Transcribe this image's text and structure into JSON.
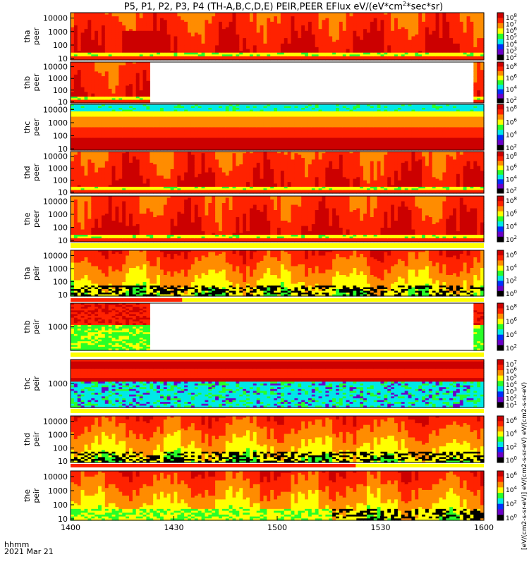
{
  "title_parts": {
    "before": "P5, P1, P2, P3, P4 (TH-A,B,C,D,E) PEIR,PEER EFlux eV/(eV*cm",
    "sup": "2",
    "after": "*sec*sr)"
  },
  "time_axis_label": "hhmm",
  "date_label": "2021 Mar 21",
  "colorbar_unit_label": "[eV/(cm2-s-sr-eV)] eV/(cm2-s-sr-eV) eV/(cm2-s-sr-eV)",
  "colors": {
    "black": "#000000",
    "purple": "#6a00c8",
    "blue": "#0030ff",
    "cyan": "#00e8e8",
    "green": "#28ff28",
    "yellow": "#ffff00",
    "orange": "#ff8c00",
    "red": "#ff2200",
    "darkred": "#cc0000"
  },
  "chart_data": {
    "type": "heatmap",
    "x_unit": "hhmm UT",
    "x_range": [
      "1400",
      "1600"
    ],
    "x_ticks": [
      "1400",
      "1430",
      "1500",
      "1530",
      "1600"
    ],
    "y_scale": "log",
    "y_unit": "eV",
    "panels": [
      {
        "name": "tha peer",
        "label1": "tha",
        "label2": "peer",
        "y_ticks": [
          "10000",
          "1000",
          "100",
          "10"
        ],
        "cbar_ticks": [
          "10^8",
          "10^7",
          "10^6",
          "10^5",
          "10^4",
          "10^3",
          "10^2"
        ],
        "features": {
          "gap": null,
          "dark_core": [
            0.12,
            0.22
          ],
          "low_band": "green-yellow"
        }
      },
      {
        "name": "thb peer",
        "label1": "thb",
        "label2": "peer",
        "y_ticks": [
          "10000",
          "1000",
          "100",
          "10"
        ],
        "cbar_ticks": [
          "10^8",
          "10^6",
          "10^4",
          "10^2"
        ],
        "features": {
          "gap": [
            0.19,
            0.97
          ]
        }
      },
      {
        "name": "thc peer",
        "label1": "thc",
        "label2": "peer",
        "y_ticks": [
          "10000",
          "1000",
          "100",
          "10"
        ],
        "cbar_ticks": [
          "10^8",
          "10^6",
          "10^4",
          "10^2"
        ],
        "features": {
          "gap": null,
          "top_band": "blue-cyan"
        }
      },
      {
        "name": "thd peer",
        "label1": "thd",
        "label2": "peer",
        "y_ticks": [
          "10000",
          "1000",
          "100",
          "10"
        ],
        "cbar_ticks": [
          "10^8",
          "10^6",
          "10^4",
          "10^2"
        ],
        "features": {
          "gap": null
        }
      },
      {
        "name": "the peer",
        "label1": "the",
        "label2": "peer",
        "y_ticks": [
          "10000",
          "1000",
          "100",
          "10"
        ],
        "cbar_ticks": [
          "10^8",
          "10^6",
          "10^4",
          "10^2"
        ],
        "features": {
          "gap": null
        }
      },
      {
        "name": "tha peir",
        "label1": "tha",
        "label2": "peir",
        "y_ticks": [
          "10000",
          "1000",
          "100",
          "10"
        ],
        "cbar_ticks": [
          "10^6",
          "10^4",
          "10^2",
          "10^0"
        ],
        "features": {
          "gap": null,
          "low_band": "black-noise"
        }
      },
      {
        "name": "thb peir",
        "label1": "thb",
        "label2": "peir",
        "y_ticks": [
          "1000"
        ],
        "cbar_ticks": [
          "10^8",
          "10^6",
          "10^4",
          "10^2"
        ],
        "features": {
          "gap": [
            0.19,
            0.97
          ]
        }
      },
      {
        "name": "thc peir",
        "label1": "thc",
        "label2": "peir",
        "y_ticks": [
          "1000"
        ],
        "cbar_ticks": [
          "10^7",
          "10^6",
          "10^5",
          "10^4",
          "10^3",
          "10^2",
          "10^1"
        ],
        "features": {
          "gap": null
        }
      },
      {
        "name": "thd peir",
        "label1": "thd",
        "label2": "peir",
        "y_ticks": [
          "10000",
          "1000",
          "100",
          "10"
        ],
        "cbar_ticks": [
          "10^6",
          "10^4",
          "10^2",
          "10^0"
        ],
        "features": {
          "gap": null,
          "low_band": "black-noise"
        }
      },
      {
        "name": "the peir",
        "label1": "the",
        "label2": "peir",
        "y_ticks": [
          "10000",
          "1000",
          "100",
          "10"
        ],
        "cbar_ticks": [
          "10^6",
          "10^4",
          "10^2",
          "10^0"
        ],
        "features": {
          "gap": null,
          "low_band": "black-noise-after-1515"
        }
      }
    ]
  }
}
